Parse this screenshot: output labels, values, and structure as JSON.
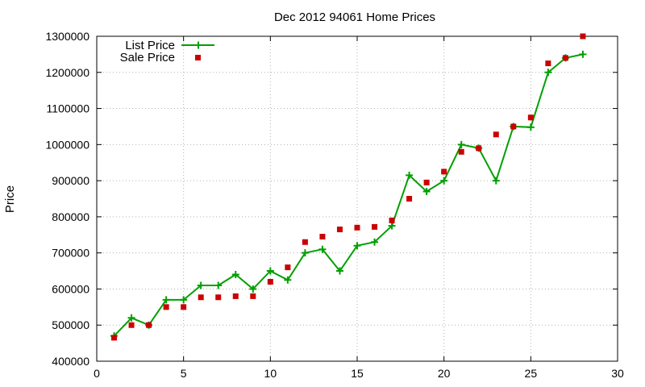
{
  "chart_data": {
    "type": "line",
    "title": "Dec 2012 94061 Home Prices",
    "xlabel": "",
    "ylabel": "Price",
    "xlim": [
      0,
      30
    ],
    "ylim": [
      400000,
      1300000
    ],
    "xticks": [
      0,
      5,
      10,
      15,
      20,
      25,
      30
    ],
    "yticks": [
      400000,
      500000,
      600000,
      700000,
      800000,
      900000,
      1000000,
      1100000,
      1200000,
      1300000
    ],
    "grid": true,
    "legend_position": "top-left",
    "x": [
      1,
      2,
      3,
      4,
      5,
      6,
      7,
      8,
      9,
      10,
      11,
      12,
      13,
      14,
      15,
      16,
      17,
      18,
      19,
      20,
      21,
      22,
      23,
      24,
      25,
      26,
      27,
      28
    ],
    "series": [
      {
        "name": "List Price",
        "style": "lines+points",
        "color": "#00a000",
        "values": [
          470000,
          520000,
          500000,
          570000,
          570000,
          610000,
          610000,
          640000,
          600000,
          650000,
          625000,
          700000,
          710000,
          650000,
          720000,
          730000,
          775000,
          915000,
          870000,
          900000,
          1000000,
          990000,
          900000,
          1050000,
          1048000,
          1200000,
          1240000,
          1250000
        ]
      },
      {
        "name": "Sale Price",
        "style": "points",
        "color": "#cc0000",
        "values": [
          465000,
          500000,
          500000,
          550000,
          550000,
          577000,
          577000,
          580000,
          580000,
          620000,
          660000,
          730000,
          745000,
          765000,
          770000,
          772000,
          790000,
          850000,
          895000,
          925000,
          980000,
          990000,
          1028000,
          1050000,
          1075000,
          1225000,
          1240000,
          1300000
        ]
      }
    ]
  }
}
